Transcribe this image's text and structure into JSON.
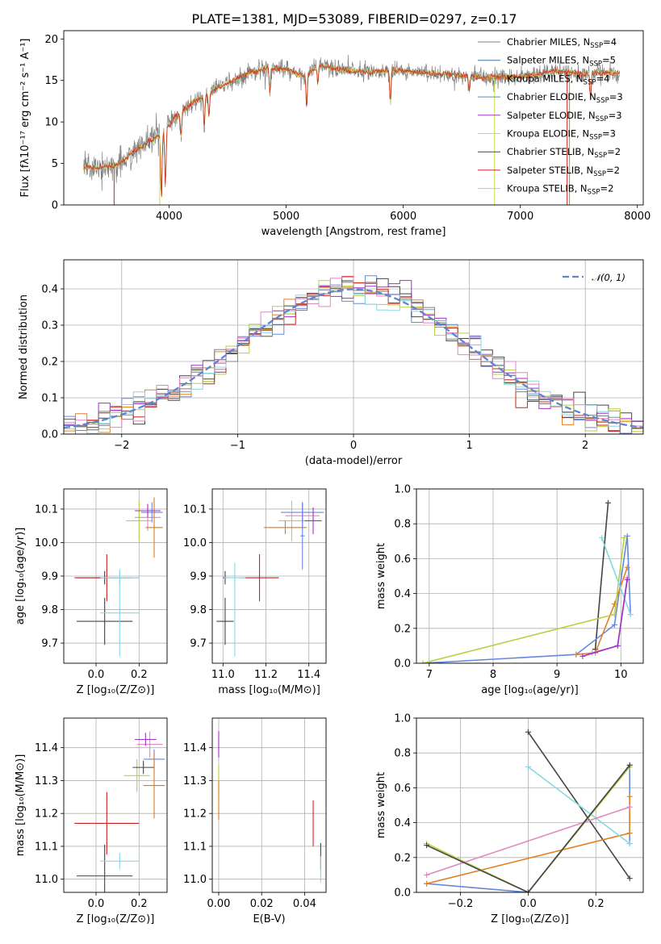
{
  "title": "PLATE=1381, MJD=53089, FIBERID=0297, z=0.17",
  "colors": {
    "chabrier_miles": "#808080",
    "salpeter_miles": "#4477aa",
    "kroupa_miles": "#d4801e",
    "chabrier_elodie": "#5a8fa8",
    "salpeter_elodie": "#9a3ad0",
    "kroupa_elodie": "#c8dc4a",
    "chabrier_stelib": "#444444",
    "salpeter_stelib": "#cc2020",
    "kroupa_stelib": "#86d8e8",
    "chabrier_full": "#444444",
    "kroupa_full": "#e0822a",
    "salpeter_full": "#6688dd",
    "pink": "#e088c0",
    "lime": "#b8d040",
    "cyan": "#88d8e0",
    "purple": "#a030c8",
    "orange": "#e07a18",
    "normal_curve": "#5b85d6"
  },
  "chart_data": [
    {
      "id": "spectrum",
      "type": "line",
      "xlabel": "wavelength [Angstrom, rest frame]",
      "ylabel": "Flux [fλ10⁻¹⁷ erg cm⁻² s⁻¹ A⁻¹]",
      "xlim": [
        3100,
        8050
      ],
      "ylim": [
        0,
        21
      ],
      "xticks": [
        4000,
        5000,
        6000,
        7000,
        8000
      ],
      "yticks": [
        0,
        5,
        10,
        15,
        20
      ],
      "legend_position": "right",
      "legend": [
        "Chabrier MILES, N_SSP=4",
        "Salpeter MILES, N_SSP=5",
        "Kroupa MILES, N_SSP=4",
        "Chabrier ELODIE, N_SSP=3",
        "Salpeter ELODIE, N_SSP=3",
        "Kroupa ELODIE, N_SSP=3",
        "Chabrier STELIB, N_SSP=2",
        "Salpeter STELIB, N_SSP=2",
        "Kroupa STELIB, N_SSP=2"
      ],
      "continuum": {
        "x": [
          3270,
          3500,
          3560,
          3700,
          3850,
          3950,
          4050,
          4150,
          4300,
          4400,
          4550,
          4700,
          4850,
          5000,
          5150,
          5200,
          5300,
          5500,
          5700,
          5900,
          6100,
          6300,
          6500,
          6700,
          6900,
          7100,
          7300,
          7500,
          7850
        ],
        "y": [
          4.5,
          4.6,
          4.8,
          6.5,
          7.8,
          8.8,
          10.5,
          11.8,
          13.2,
          14.0,
          15.0,
          16.0,
          16.6,
          16.4,
          15.5,
          16.2,
          16.8,
          16.2,
          16.0,
          16.3,
          16.0,
          15.8,
          15.6,
          15.4,
          15.4,
          15.6,
          16.2,
          15.8,
          15.9
        ]
      }
    },
    {
      "id": "histogram",
      "type": "bar",
      "xlabel": "(data-model)/error",
      "ylabel": "Normed distribution",
      "xlim": [
        -2.5,
        2.5
      ],
      "ylim": [
        0,
        0.48
      ],
      "xticks": [
        -2,
        -1,
        0,
        1,
        2
      ],
      "yticks": [
        0.0,
        0.1,
        0.2,
        0.3,
        0.4
      ],
      "legend": [
        "𝒩(0, 1)"
      ],
      "legend_position": "top-right",
      "bin_width": 0.1
    },
    {
      "id": "age-vs-Z",
      "type": "scatter",
      "xlabel": "Z [log₁₀(Z/Z⊙)]",
      "ylabel": "age  [log₁₀(age/yr)]",
      "xlim": [
        -0.15,
        0.33
      ],
      "ylim": [
        9.64,
        10.16
      ],
      "xticks": [
        0.0,
        0.2
      ],
      "yticks": [
        9.7,
        9.8,
        9.9,
        10.0,
        10.1
      ],
      "points": [
        {
          "x": 0.04,
          "y": 9.765,
          "xerr": 0.13,
          "yerr": 0.07,
          "c": "chabrier_stelib"
        },
        {
          "x": 0.04,
          "y": 9.895,
          "xerr": 0.13,
          "yerr": 0.02,
          "c": "chabrier_stelib"
        },
        {
          "x": 0.05,
          "y": 9.895,
          "xerr": 0.15,
          "yerr": 0.07,
          "c": "salpeter_stelib"
        },
        {
          "x": 0.11,
          "y": 9.895,
          "xerr": 0.09,
          "yerr": 0.02,
          "c": "kroupa_stelib"
        },
        {
          "x": 0.11,
          "y": 9.79,
          "xerr": 0.09,
          "yerr": 0.13,
          "c": "kroupa_stelib"
        },
        {
          "x": 0.2,
          "y": 10.065,
          "xerr": 0.06,
          "yerr": 0.06,
          "c": "lime"
        },
        {
          "x": 0.24,
          "y": 10.075,
          "xerr": 0.06,
          "yerr": 0.04,
          "c": "pink"
        },
        {
          "x": 0.26,
          "y": 10.09,
          "xerr": 0.05,
          "yerr": 0.03,
          "c": "salpeter_full"
        },
        {
          "x": 0.27,
          "y": 10.045,
          "xerr": 0.04,
          "yerr": 0.09,
          "c": "orange"
        },
        {
          "x": 0.24,
          "y": 10.095,
          "xerr": 0.06,
          "yerr": 0.02,
          "c": "purple"
        }
      ]
    },
    {
      "id": "age-vs-mass",
      "type": "scatter",
      "xlabel": "mass [log₁₀(M/M⊙)]",
      "ylabel": "",
      "xlim": [
        10.95,
        11.48
      ],
      "ylim": [
        9.64,
        10.16
      ],
      "xticks": [
        11.0,
        11.2,
        11.4
      ],
      "yticks": [
        9.7,
        9.8,
        9.9,
        10.0,
        10.1
      ],
      "points": [
        {
          "x": 11.01,
          "y": 9.765,
          "xerr": 0.04,
          "yerr": 0.07,
          "c": "chabrier_stelib"
        },
        {
          "x": 11.01,
          "y": 9.895,
          "xerr": 0.01,
          "yerr": 0.02,
          "c": "chabrier_stelib"
        },
        {
          "x": 11.17,
          "y": 9.895,
          "xerr": 0.09,
          "yerr": 0.07,
          "c": "salpeter_stelib"
        },
        {
          "x": 11.055,
          "y": 9.895,
          "xerr": 0.05,
          "yerr": 0.02,
          "c": "kroupa_stelib"
        },
        {
          "x": 11.055,
          "y": 9.8,
          "xerr": 0.01,
          "yerr": 0.14,
          "c": "kroupa_stelib"
        },
        {
          "x": 11.32,
          "y": 10.065,
          "xerr": 0.06,
          "yerr": 0.06,
          "c": "lime"
        },
        {
          "x": 11.37,
          "y": 10.08,
          "xerr": 0.08,
          "yerr": 0.04,
          "c": "pink"
        },
        {
          "x": 11.37,
          "y": 10.09,
          "xerr": 0.1,
          "yerr": 0.03,
          "c": "salpeter_full"
        },
        {
          "x": 11.29,
          "y": 10.045,
          "xerr": 0.1,
          "yerr": 0.02,
          "c": "orange"
        },
        {
          "x": 11.42,
          "y": 10.065,
          "xerr": 0.04,
          "yerr": 0.04,
          "c": "purple"
        },
        {
          "x": 11.37,
          "y": 10.02,
          "xerr": 0.01,
          "yerr": 0.1,
          "c": "salpeter_full"
        }
      ]
    },
    {
      "id": "massweight-vs-age",
      "type": "line",
      "xlabel": "age  [log₁₀(age/yr)]",
      "ylabel": "mass weight",
      "xlim": [
        6.8,
        10.35
      ],
      "ylim": [
        0,
        1.0
      ],
      "xticks": [
        7,
        8,
        9,
        10
      ],
      "yticks": [
        0.0,
        0.2,
        0.4,
        0.6,
        0.8,
        1.0
      ],
      "series": [
        {
          "c": "chabrier_full",
          "x": [
            9.6,
            9.6,
            9.8
          ],
          "y": [
            0.08,
            0.08,
            0.92
          ]
        },
        {
          "c": "salpeter_full",
          "x": [
            6.9,
            9.3,
            9.9,
            10.1,
            10.15
          ],
          "y": [
            0.0,
            0.05,
            0.22,
            0.73,
            0.28
          ]
        },
        {
          "c": "kroupa_full",
          "x": [
            9.3,
            9.6,
            9.9,
            10.1
          ],
          "y": [
            0.05,
            0.06,
            0.34,
            0.55
          ]
        },
        {
          "c": "lime",
          "x": [
            6.9,
            9.9,
            10.05
          ],
          "y": [
            0.0,
            0.28,
            0.72
          ]
        },
        {
          "c": "cyan",
          "x": [
            9.7,
            10.15
          ],
          "y": [
            0.72,
            0.28
          ]
        },
        {
          "c": "pink",
          "x": [
            9.55,
            9.95,
            10.1
          ],
          "y": [
            0.06,
            0.1,
            0.49
          ]
        },
        {
          "c": "purple",
          "x": [
            9.4,
            9.95,
            10.1
          ],
          "y": [
            0.04,
            0.1,
            0.48
          ]
        }
      ]
    },
    {
      "id": "mass-vs-Z",
      "type": "scatter",
      "xlabel": "Z [log₁₀(Z/Z⊙)]",
      "ylabel": "mass [log₁₀(M/M⊙)]",
      "xlim": [
        -0.15,
        0.33
      ],
      "ylim": [
        10.96,
        11.49
      ],
      "xticks": [
        0.0,
        0.2
      ],
      "yticks": [
        11.0,
        11.1,
        11.2,
        11.3,
        11.4
      ],
      "points": [
        {
          "x": 0.04,
          "y": 11.01,
          "xerr": 0.13,
          "yerr": 0.095,
          "c": "chabrier_stelib"
        },
        {
          "x": 0.05,
          "y": 11.17,
          "xerr": 0.15,
          "yerr": 0.095,
          "c": "salpeter_stelib"
        },
        {
          "x": 0.11,
          "y": 11.055,
          "xerr": 0.09,
          "yerr": 0.025,
          "c": "kroupa_stelib"
        },
        {
          "x": 0.19,
          "y": 11.315,
          "xerr": 0.06,
          "yerr": 0.05,
          "c": "lime"
        },
        {
          "x": 0.22,
          "y": 11.34,
          "xerr": 0.05,
          "yerr": 0.02,
          "c": "chabrier_stelib"
        },
        {
          "x": 0.25,
          "y": 11.41,
          "xerr": 0.06,
          "yerr": 0.04,
          "c": "pink"
        },
        {
          "x": 0.27,
          "y": 11.365,
          "xerr": 0.05,
          "yerr": 0.03,
          "c": "salpeter_full"
        },
        {
          "x": 0.27,
          "y": 11.285,
          "xerr": 0.05,
          "yerr": 0.1,
          "c": "orange"
        },
        {
          "x": 0.23,
          "y": 11.425,
          "xerr": 0.05,
          "yerr": 0.02,
          "c": "purple"
        }
      ]
    },
    {
      "id": "mass-vs-EBV",
      "type": "scatter",
      "xlabel": "E(B-V)",
      "ylabel": "",
      "xlim": [
        -0.003,
        0.05
      ],
      "ylim": [
        10.96,
        11.49
      ],
      "xticks": [
        0.0,
        0.02,
        0.04
      ],
      "yticks": [
        11.0,
        11.1,
        11.2,
        11.3,
        11.4
      ],
      "points": [
        {
          "x": 0.0,
          "y": 11.41,
          "xerr": 0.0,
          "yerr": 0.04,
          "c": "purple"
        },
        {
          "x": 0.0,
          "y": 11.3,
          "xerr": 0.0,
          "yerr": 0.05,
          "c": "lime"
        },
        {
          "x": 0.0,
          "y": 11.24,
          "xerr": 0.0,
          "yerr": 0.06,
          "c": "orange"
        },
        {
          "x": 0.044,
          "y": 11.17,
          "xerr": 0.0,
          "yerr": 0.07,
          "c": "salpeter_stelib"
        },
        {
          "x": 0.0475,
          "y": 11.07,
          "xerr": 0.0,
          "yerr": 0.04,
          "c": "chabrier_stelib"
        },
        {
          "x": 0.0475,
          "y": 11.03,
          "xerr": 0.0,
          "yerr": 0.04,
          "c": "kroupa_stelib"
        }
      ]
    },
    {
      "id": "massweight-vs-Z",
      "type": "line",
      "xlabel": "Z [log₁₀(Z/Z⊙)]",
      "ylabel": "mass weight",
      "xlim": [
        -0.33,
        0.34
      ],
      "ylim": [
        0,
        1.0
      ],
      "xticks": [
        -0.2,
        0.0,
        0.2
      ],
      "yticks": [
        0.0,
        0.2,
        0.4,
        0.6,
        0.8,
        1.0
      ],
      "series": [
        {
          "c": "chabrier_full",
          "x": [
            0.0,
            0.3
          ],
          "y": [
            0.92,
            0.08
          ]
        },
        {
          "c": "salpeter_full",
          "x": [
            -0.3,
            0.0,
            0.3,
            0.3
          ],
          "y": [
            0.05,
            0.0,
            0.73,
            0.28
          ]
        },
        {
          "c": "kroupa_full",
          "x": [
            -0.3,
            0.3,
            0.3
          ],
          "y": [
            0.05,
            0.34,
            0.55
          ]
        },
        {
          "c": "lime",
          "x": [
            -0.3,
            0.0,
            0.3
          ],
          "y": [
            0.28,
            0.0,
            0.72
          ]
        },
        {
          "c": "cyan",
          "x": [
            0.0,
            0.3
          ],
          "y": [
            0.72,
            0.28
          ]
        },
        {
          "c": "pink",
          "x": [
            -0.3,
            0.3
          ],
          "y": [
            0.1,
            0.49
          ]
        },
        {
          "c": "chabrier_stelib",
          "x": [
            -0.3,
            0.0,
            0.3
          ],
          "y": [
            0.27,
            0.0,
            0.73
          ]
        }
      ]
    }
  ]
}
